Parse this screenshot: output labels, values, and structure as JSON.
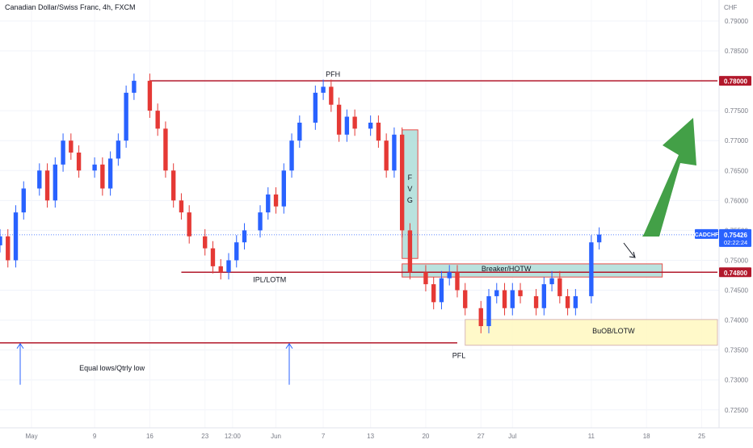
{
  "header": {
    "title": "Canadian Dollar/Swiss Franc, 4h, FXCM"
  },
  "axis": {
    "currency": "CHF",
    "y_ticks": [
      "0.79000",
      "0.78500",
      "0.77500",
      "0.77000",
      "0.76500",
      "0.76000",
      "0.75500",
      "0.75000",
      "0.74500",
      "0.74000",
      "0.73500",
      "0.73000",
      "0.72500"
    ],
    "y_tick_values": [
      0.79,
      0.785,
      0.775,
      0.77,
      0.765,
      0.76,
      0.755,
      0.75,
      0.745,
      0.74,
      0.735,
      0.73,
      0.725
    ],
    "x_ticks": [
      "May",
      "9",
      "16",
      "23",
      "12:00",
      "Jun",
      "7",
      "13",
      "20",
      "27",
      "Jul",
      "11",
      "18",
      "25"
    ],
    "x_tick_dates": [
      "2022-05-01",
      "2022-05-09",
      "2022-05-16",
      "2022-05-23",
      "2022-05-26T12:00",
      "2022-06-01",
      "2022-06-07",
      "2022-06-13",
      "2022-06-20",
      "2022-06-27",
      "2022-07-01",
      "2022-07-11",
      "2022-07-18",
      "2022-07-25"
    ]
  },
  "price_labels": {
    "pfh_level": {
      "text": "0.78000",
      "value": 0.78,
      "color": "#b2182b"
    },
    "ipl_level": {
      "text": "0.74800",
      "value": 0.748,
      "color": "#b2182b"
    },
    "current": {
      "symbol": "CADCHF",
      "price": "0.75426",
      "countdown": "02:22:24",
      "value": 0.75426,
      "color": "#2962ff"
    }
  },
  "annotations": {
    "pfh": "PFH",
    "ipl": "IPL/LOTM",
    "pfl": "PFL",
    "fvg": [
      "F",
      "V",
      "G"
    ],
    "breaker": "Breaker/HOTW",
    "buob": "BuOB/LOTW",
    "equal_lows": "Equal lows/Qtrly low"
  },
  "colors": {
    "up": "#2962ff",
    "down": "#e53935",
    "level_line": "#b2182b",
    "zone_green": "#b2dfdb",
    "zone_yellow": "#fff9c4",
    "arrow_green": "#43a047"
  },
  "chart_data": {
    "type": "candlestick",
    "title": "Canadian Dollar/Swiss Franc, 4h, FXCM",
    "y_unit": "CHF",
    "ylim": [
      0.722,
      0.7935
    ],
    "xlim": [
      "2022-04-27",
      "2022-07-27"
    ],
    "levels": [
      {
        "name": "PFH",
        "value": 0.78,
        "from": "2022-05-16",
        "to": "2022-07-27"
      },
      {
        "name": "IPL/LOTM",
        "value": 0.748,
        "from": "2022-05-20",
        "to": "2022-07-27"
      },
      {
        "name": "Equal lows/Qtrly low",
        "value": 0.7362,
        "from": "2022-04-27",
        "to": "2022-06-24"
      }
    ],
    "zones": [
      {
        "name": "FVG",
        "from": "2022-06-17",
        "to": "2022-06-19",
        "top": 0.7718,
        "bottom": 0.7503
      },
      {
        "name": "Breaker/HOTW",
        "from": "2022-06-17",
        "to": "2022-07-20",
        "top": 0.7494,
        "bottom": 0.7472
      },
      {
        "name": "BuOB/LOTW",
        "from": "2022-06-25",
        "to": "2022-07-27",
        "top": 0.7401,
        "bottom": 0.7358
      }
    ],
    "series": [
      {
        "x": [
          "2022-04-27",
          "2022-04-28",
          "2022-04-29",
          "2022-04-30",
          "2022-05-02",
          "2022-05-03",
          "2022-05-04",
          "2022-05-05",
          "2022-05-06",
          "2022-05-07",
          "2022-05-09",
          "2022-05-10",
          "2022-05-11",
          "2022-05-12",
          "2022-05-13",
          "2022-05-14",
          "2022-05-16",
          "2022-05-17",
          "2022-05-18",
          "2022-05-19",
          "2022-05-20",
          "2022-05-21",
          "2022-05-23",
          "2022-05-24",
          "2022-05-25",
          "2022-05-26",
          "2022-05-27",
          "2022-05-28",
          "2022-05-30",
          "2022-05-31",
          "2022-06-01",
          "2022-06-02",
          "2022-06-03",
          "2022-06-04",
          "2022-06-06",
          "2022-06-07",
          "2022-06-08",
          "2022-06-09",
          "2022-06-10",
          "2022-06-11",
          "2022-06-13",
          "2022-06-14",
          "2022-06-15",
          "2022-06-16",
          "2022-06-17",
          "2022-06-18",
          "2022-06-20",
          "2022-06-21",
          "2022-06-22",
          "2022-06-23",
          "2022-06-24",
          "2022-06-25",
          "2022-06-27",
          "2022-06-28",
          "2022-06-29",
          "2022-06-30",
          "2022-07-01",
          "2022-07-02",
          "2022-07-04",
          "2022-07-05",
          "2022-07-06",
          "2022-07-07",
          "2022-07-08",
          "2022-07-09",
          "2022-07-11",
          "2022-07-12"
        ],
        "close": [
          0.754,
          0.75,
          0.758,
          0.762,
          0.765,
          0.76,
          0.766,
          0.77,
          0.768,
          0.765,
          0.766,
          0.762,
          0.767,
          0.77,
          0.778,
          0.78,
          0.775,
          0.772,
          0.765,
          0.76,
          0.758,
          0.754,
          0.752,
          0.749,
          0.748,
          0.75,
          0.753,
          0.755,
          0.758,
          0.761,
          0.759,
          0.765,
          0.77,
          0.773,
          0.778,
          0.779,
          0.776,
          0.771,
          0.774,
          0.772,
          0.773,
          0.77,
          0.765,
          0.771,
          0.755,
          0.748,
          0.746,
          0.743,
          0.747,
          0.748,
          0.745,
          0.742,
          0.739,
          0.744,
          0.745,
          0.742,
          0.745,
          0.744,
          0.742,
          0.746,
          0.747,
          0.744,
          0.742,
          0.744,
          0.753,
          0.7543
        ]
      }
    ]
  }
}
